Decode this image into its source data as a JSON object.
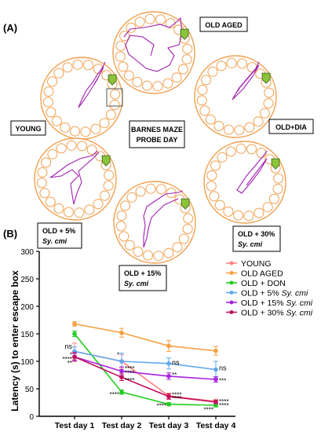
{
  "panel_a": {
    "label": "(A)",
    "center_label": [
      "BARNES MAZE",
      "PROBE DAY"
    ],
    "mazes": [
      {
        "id": "old-aged",
        "label": [
          "OLD AGED"
        ]
      },
      {
        "id": "young",
        "label": [
          "YOUNG"
        ]
      },
      {
        "id": "old-dia",
        "label": [
          "OLD+DIA"
        ]
      },
      {
        "id": "old-5",
        "label": [
          "OLD + 5%",
          "Sy. cmi"
        ]
      },
      {
        "id": "old-15",
        "label": [
          "OLD + 15%",
          "Sy. cmi"
        ]
      },
      {
        "id": "old-30",
        "label": [
          "OLD + 30%",
          "Sy. cmi"
        ]
      }
    ],
    "colors": {
      "ring": "#f0a050",
      "path": "#a020b0",
      "flag": "#8ac43a"
    }
  },
  "panel_b": {
    "label": "(B)"
  },
  "chart_data": {
    "type": "line",
    "ylabel": "Latency (s) to enter escape box",
    "xlabel": "",
    "categories": [
      "Test day 1",
      "Test day 2",
      "Test day 3",
      "Test day 4"
    ],
    "ylim": [
      0,
      300
    ],
    "yticks": [
      0,
      50,
      100,
      150,
      200,
      250,
      300
    ],
    "legend_placement": "right",
    "series": [
      {
        "name": "YOUNG",
        "name_parts": [
          "YOUNG",
          ""
        ],
        "color": "#ff8080",
        "values": [
          118,
          100,
          37,
          27
        ],
        "errors": [
          15,
          12,
          5,
          4
        ]
      },
      {
        "name": "OLD AGED",
        "name_parts": [
          "OLD AGED",
          ""
        ],
        "color": "#f5a040",
        "values": [
          168,
          152,
          128,
          119
        ],
        "errors": [
          4,
          8,
          10,
          8
        ]
      },
      {
        "name": "OLD + DON",
        "name_parts": [
          "OLD + DON",
          ""
        ],
        "color": "#22cc22",
        "values": [
          150,
          44,
          22,
          20
        ],
        "errors": [
          5,
          4,
          3,
          3
        ]
      },
      {
        "name": "OLD + 5% Sy. cmi",
        "name_parts": [
          "OLD + 5% ",
          "Sy. cmi"
        ],
        "color": "#60a8ee",
        "values": [
          118,
          100,
          96,
          85
        ],
        "errors": [
          8,
          15,
          10,
          15
        ]
      },
      {
        "name": "OLD + 15% Sy. cmi",
        "name_parts": [
          "OLD + 15% ",
          "Sy. cmi"
        ],
        "color": "#aa22dd",
        "values": [
          108,
          82,
          73,
          67
        ],
        "errors": [
          6,
          8,
          6,
          5
        ]
      },
      {
        "name": "OLD + 30% Sy. cmi",
        "name_parts": [
          "OLD + 30% ",
          "Sy. cmi"
        ],
        "color": "#c0105a",
        "values": [
          108,
          71,
          36,
          26
        ],
        "errors": [
          8,
          6,
          5,
          3
        ]
      }
    ],
    "annotations": [
      {
        "text": "ns",
        "day": 0,
        "y": 127,
        "side": "left"
      },
      {
        "text": "*",
        "day": 0,
        "y": 112,
        "side": "left"
      },
      {
        "text": "****",
        "day": 0,
        "y": 104,
        "side": "left"
      },
      {
        "text": "**",
        "day": 0,
        "y": 97,
        "side": "left"
      },
      {
        "text": "*",
        "day": 1,
        "y": 112,
        "side": "left"
      },
      {
        "text": "****",
        "day": 1,
        "y": 87,
        "side": "right"
      },
      {
        "text": "****",
        "day": 1,
        "y": 79,
        "side": "right"
      },
      {
        "text": "****",
        "day": 1,
        "y": 66,
        "side": "right"
      },
      {
        "text": "****",
        "day": 1,
        "y": 40,
        "side": "left"
      },
      {
        "text": "ns",
        "day": 2,
        "y": 98,
        "side": "right"
      },
      {
        "text": "**",
        "day": 2,
        "y": 76,
        "side": "right"
      },
      {
        "text": "****",
        "day": 2,
        "y": 39,
        "side": "right"
      },
      {
        "text": "****",
        "day": 2,
        "y": 33,
        "side": "right"
      },
      {
        "text": "****",
        "day": 2,
        "y": 19,
        "side": "left"
      },
      {
        "text": "ns",
        "day": 3,
        "y": 88,
        "side": "right"
      },
      {
        "text": "***",
        "day": 3,
        "y": 65,
        "side": "right"
      },
      {
        "text": "****",
        "day": 3,
        "y": 27,
        "side": "right"
      },
      {
        "text": "****",
        "day": 3,
        "y": 20,
        "side": "right"
      },
      {
        "text": "****",
        "day": 3,
        "y": 12,
        "side": "left"
      }
    ]
  }
}
